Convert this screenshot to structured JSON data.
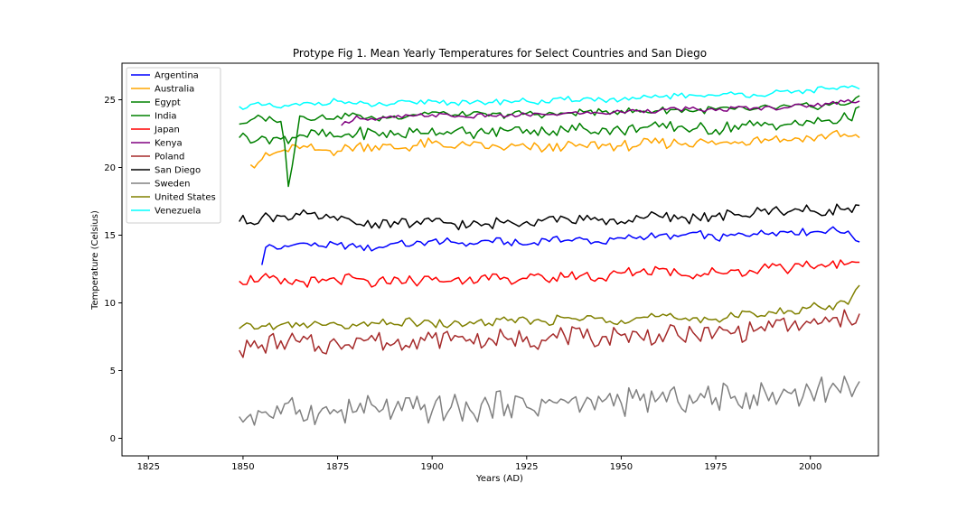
{
  "chart_data": {
    "type": "line",
    "title": "Protype Fig 1. Mean Yearly Temperatures for Select Countries and San Diego",
    "xlabel": "Years (AD)",
    "ylabel": "Temperature (Celsius)",
    "xlim": [
      1818,
      2018
    ],
    "ylim": [
      -1.3,
      27.7
    ],
    "xticks": [
      1825,
      1850,
      1875,
      1900,
      1925,
      1950,
      1975,
      2000
    ],
    "yticks": [
      0,
      5,
      10,
      15,
      20,
      25
    ],
    "grid": false,
    "legend_position": "upper-left",
    "series": [
      {
        "name": "Argentina",
        "color": "#0000ff",
        "x": [
          1855,
          1856,
          1857,
          1860,
          1865,
          1870,
          1875,
          1880,
          1885,
          1890,
          1895,
          1900,
          1905,
          1910,
          1915,
          1920,
          1925,
          1930,
          1935,
          1940,
          1945,
          1950,
          1955,
          1960,
          1965,
          1970,
          1975,
          1980,
          1985,
          1990,
          1995,
          2000,
          2005,
          2010,
          2013
        ],
        "values": [
          12.8,
          14.1,
          14.3,
          14.0,
          14.4,
          14.2,
          14.3,
          14.1,
          14.0,
          14.4,
          14.3,
          14.6,
          14.5,
          14.4,
          14.6,
          14.5,
          14.3,
          14.7,
          14.6,
          14.7,
          14.4,
          14.8,
          14.9,
          15.0,
          14.9,
          15.2,
          14.7,
          15.0,
          15.1,
          15.2,
          15.3,
          15.2,
          15.4,
          15.3,
          14.5
        ]
      },
      {
        "name": "Australia",
        "color": "#ffa500",
        "x": [
          1852,
          1855,
          1860,
          1865,
          1870,
          1875,
          1880,
          1885,
          1890,
          1895,
          1900,
          1905,
          1910,
          1915,
          1920,
          1925,
          1930,
          1935,
          1940,
          1945,
          1950,
          1955,
          1960,
          1965,
          1970,
          1975,
          1980,
          1985,
          1990,
          1995,
          2000,
          2005,
          2010,
          2013
        ],
        "values": [
          20.2,
          20.6,
          21.2,
          21.4,
          21.3,
          21.2,
          21.6,
          21.6,
          21.4,
          21.6,
          21.8,
          21.5,
          21.6,
          21.4,
          21.5,
          21.5,
          21.4,
          21.5,
          21.6,
          21.7,
          21.6,
          21.7,
          21.8,
          21.8,
          21.9,
          21.7,
          21.9,
          22.1,
          22.1,
          22.0,
          22.2,
          22.4,
          22.3,
          22.2
        ]
      },
      {
        "name": "Egypt",
        "color": "#008000",
        "x": [
          1849,
          1852,
          1855,
          1858,
          1860,
          1861,
          1862,
          1865,
          1870,
          1875,
          1880,
          1885,
          1890,
          1895,
          1900,
          1905,
          1910,
          1915,
          1920,
          1925,
          1930,
          1935,
          1940,
          1945,
          1950,
          1955,
          1960,
          1965,
          1970,
          1975,
          1980,
          1985,
          1990,
          1995,
          2000,
          2005,
          2010,
          2013
        ],
        "values": [
          23.2,
          23.5,
          23.7,
          23.5,
          23.4,
          21.7,
          18.6,
          23.8,
          23.7,
          23.8,
          23.9,
          23.6,
          23.8,
          23.9,
          24.1,
          23.8,
          23.9,
          23.8,
          23.9,
          24.0,
          23.9,
          24.0,
          24.1,
          24.1,
          24.2,
          24.1,
          24.2,
          24.3,
          24.2,
          24.3,
          24.3,
          24.3,
          24.4,
          24.5,
          24.5,
          24.6,
          24.7,
          25.3
        ]
      },
      {
        "name": "India",
        "color": "#008000",
        "x": [
          1849,
          1855,
          1860,
          1865,
          1870,
          1875,
          1880,
          1885,
          1890,
          1895,
          1900,
          1905,
          1910,
          1915,
          1920,
          1925,
          1930,
          1935,
          1940,
          1945,
          1950,
          1955,
          1960,
          1965,
          1970,
          1975,
          1980,
          1985,
          1990,
          1995,
          2000,
          2005,
          2010,
          2013
        ],
        "values": [
          22.2,
          22.3,
          22.1,
          22.4,
          22.4,
          22.3,
          22.5,
          22.6,
          22.4,
          22.6,
          22.9,
          22.5,
          22.6,
          22.5,
          22.7,
          22.8,
          22.6,
          22.8,
          22.9,
          22.9,
          22.7,
          22.9,
          23.0,
          23.0,
          22.9,
          22.8,
          23.1,
          23.1,
          23.2,
          23.2,
          23.4,
          23.5,
          23.6,
          24.5
        ]
      },
      {
        "name": "Japan",
        "color": "#ff0000",
        "x": [
          1849,
          1855,
          1860,
          1865,
          1870,
          1875,
          1880,
          1885,
          1890,
          1895,
          1900,
          1905,
          1910,
          1915,
          1920,
          1925,
          1930,
          1935,
          1940,
          1945,
          1950,
          1955,
          1960,
          1965,
          1970,
          1975,
          1980,
          1985,
          1990,
          1995,
          2000,
          2005,
          2010,
          2013
        ],
        "values": [
          11.6,
          11.9,
          11.4,
          11.6,
          11.5,
          11.6,
          11.8,
          11.3,
          11.9,
          11.6,
          11.7,
          11.6,
          11.9,
          11.7,
          11.8,
          11.8,
          11.7,
          11.9,
          12.1,
          11.8,
          12.2,
          12.3,
          12.5,
          12.2,
          12.1,
          12.3,
          12.4,
          12.3,
          12.9,
          12.5,
          12.7,
          12.8,
          12.9,
          13.0
        ]
      },
      {
        "name": "Kenya",
        "color": "#800080",
        "x": [
          1876,
          1880,
          1885,
          1890,
          1895,
          1900,
          1905,
          1910,
          1915,
          1920,
          1925,
          1930,
          1935,
          1940,
          1945,
          1950,
          1955,
          1960,
          1965,
          1970,
          1975,
          1980,
          1985,
          1990,
          1995,
          2000,
          2005,
          2010,
          2013
        ],
        "values": [
          23.1,
          23.8,
          23.5,
          23.7,
          23.8,
          23.9,
          23.8,
          23.7,
          23.9,
          23.8,
          23.9,
          23.9,
          24.0,
          24.0,
          24.0,
          24.1,
          24.2,
          24.2,
          24.3,
          24.3,
          24.2,
          24.4,
          24.4,
          24.4,
          24.5,
          24.6,
          24.7,
          25.0,
          24.9
        ]
      },
      {
        "name": "Poland",
        "color": "#a52a2a",
        "x": [
          1849,
          1855,
          1860,
          1865,
          1870,
          1875,
          1880,
          1885,
          1890,
          1895,
          1900,
          1905,
          1910,
          1915,
          1920,
          1925,
          1930,
          1935,
          1940,
          1945,
          1950,
          1955,
          1960,
          1965,
          1970,
          1975,
          1980,
          1985,
          1990,
          1995,
          2000,
          2005,
          2010,
          2013
        ],
        "values": [
          6.5,
          6.9,
          7.2,
          7.1,
          6.8,
          7.0,
          7.4,
          7.2,
          7.0,
          7.3,
          7.4,
          7.2,
          7.3,
          7.4,
          7.3,
          7.5,
          7.2,
          7.6,
          7.4,
          7.5,
          7.6,
          7.5,
          7.7,
          7.6,
          7.5,
          7.8,
          7.8,
          7.9,
          8.2,
          8.3,
          8.5,
          8.6,
          8.8,
          9.2
        ]
      },
      {
        "name": "San Diego",
        "color": "#000000",
        "x": [
          1849,
          1855,
          1860,
          1865,
          1870,
          1875,
          1880,
          1885,
          1890,
          1895,
          1900,
          1905,
          1910,
          1915,
          1920,
          1925,
          1930,
          1935,
          1940,
          1945,
          1950,
          1955,
          1960,
          1965,
          1970,
          1975,
          1980,
          1985,
          1990,
          1995,
          2000,
          2005,
          2010,
          2013
        ],
        "values": [
          16.0,
          16.3,
          16.4,
          16.5,
          16.2,
          16.1,
          15.8,
          15.9,
          16.0,
          15.8,
          16.0,
          15.9,
          15.7,
          15.8,
          16.1,
          16.0,
          16.2,
          16.3,
          16.1,
          16.2,
          16.0,
          16.3,
          16.4,
          16.2,
          16.3,
          16.4,
          16.5,
          16.6,
          16.9,
          16.8,
          16.8,
          16.9,
          17.0,
          17.2
        ]
      },
      {
        "name": "Sweden",
        "color": "#808080",
        "x": [
          1849,
          1855,
          1860,
          1865,
          1870,
          1875,
          1880,
          1885,
          1890,
          1895,
          1900,
          1905,
          1910,
          1915,
          1920,
          1925,
          1930,
          1935,
          1940,
          1945,
          1950,
          1955,
          1960,
          1965,
          1970,
          1975,
          1980,
          1985,
          1990,
          1995,
          2000,
          2005,
          2010,
          2013
        ],
        "values": [
          1.6,
          1.9,
          1.8,
          2.1,
          1.8,
          1.9,
          2.0,
          2.3,
          2.1,
          2.2,
          2.0,
          2.3,
          2.1,
          2.4,
          2.5,
          2.3,
          2.6,
          2.8,
          2.5,
          2.7,
          2.6,
          2.8,
          3.0,
          2.7,
          2.8,
          3.0,
          3.1,
          3.2,
          3.4,
          3.3,
          3.5,
          3.6,
          3.9,
          4.2
        ]
      },
      {
        "name": "United States",
        "color": "#808000",
        "x": [
          1849,
          1855,
          1860,
          1865,
          1870,
          1875,
          1880,
          1885,
          1890,
          1895,
          1900,
          1905,
          1910,
          1915,
          1920,
          1925,
          1930,
          1935,
          1940,
          1945,
          1950,
          1955,
          1960,
          1965,
          1970,
          1975,
          1980,
          1985,
          1990,
          1995,
          2000,
          2005,
          2010,
          2013
        ],
        "values": [
          8.1,
          8.3,
          8.4,
          8.3,
          8.5,
          8.4,
          8.3,
          8.5,
          8.4,
          8.6,
          8.5,
          8.4,
          8.6,
          8.5,
          8.7,
          8.8,
          8.6,
          8.9,
          8.8,
          8.9,
          8.7,
          8.9,
          9.0,
          8.8,
          8.9,
          8.8,
          9.0,
          9.2,
          9.3,
          9.4,
          9.7,
          9.8,
          9.9,
          11.3
        ]
      },
      {
        "name": "Venezuela",
        "color": "#00ffff",
        "x": [
          1849,
          1855,
          1860,
          1865,
          1870,
          1875,
          1880,
          1885,
          1890,
          1895,
          1900,
          1905,
          1910,
          1915,
          1920,
          1925,
          1930,
          1935,
          1940,
          1945,
          1950,
          1955,
          1960,
          1965,
          1970,
          1975,
          1980,
          1985,
          1990,
          1995,
          2000,
          2005,
          2010,
          2013
        ],
        "values": [
          24.5,
          24.6,
          24.4,
          24.6,
          24.8,
          24.9,
          24.7,
          24.6,
          24.7,
          24.8,
          24.9,
          24.8,
          24.7,
          24.8,
          24.9,
          24.9,
          24.8,
          25.0,
          25.1,
          25.0,
          25.0,
          25.1,
          25.2,
          25.3,
          25.3,
          25.3,
          25.4,
          25.4,
          25.5,
          25.5,
          25.7,
          25.8,
          25.9,
          25.8
        ]
      }
    ]
  }
}
